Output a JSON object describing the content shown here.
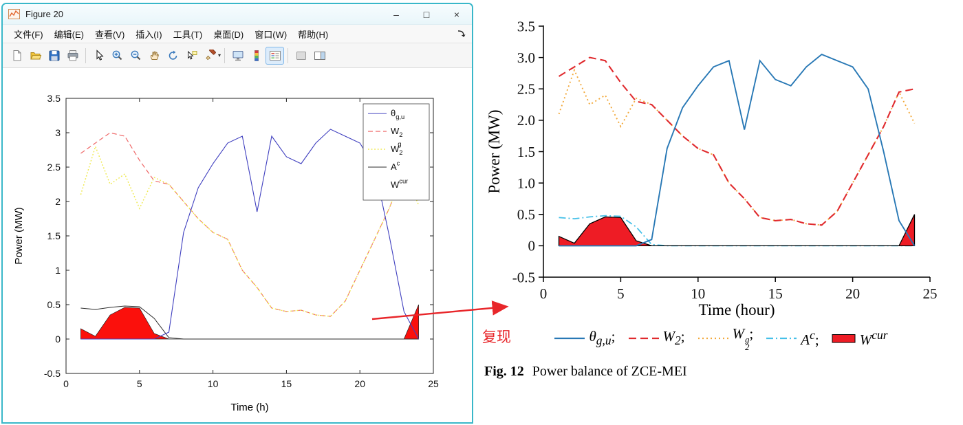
{
  "window": {
    "title": "Figure 20",
    "controls": [
      {
        "name": "minimize",
        "glyph": "–"
      },
      {
        "name": "maximize",
        "glyph": "□"
      },
      {
        "name": "close",
        "glyph": "×"
      }
    ],
    "menus": [
      "文件(F)",
      "编辑(E)",
      "查看(V)",
      "插入(I)",
      "工具(T)",
      "桌面(D)",
      "窗口(W)",
      "帮助(H)"
    ],
    "menubar_corner_icon": "dock-figure-arrow-icon",
    "toolbar_icons": [
      "new-figure",
      "open-file",
      "save-figure",
      "print-figure",
      "edit-plot-pointer",
      "zoom-in",
      "zoom-out",
      "pan-hand",
      "rotate-3d",
      "data-cursor",
      "brush-data",
      "link-plot",
      "insert-colorbar",
      "insert-legend",
      "hide-plot-tools",
      "show-plot-tools"
    ],
    "active_tool": "insert-legend"
  },
  "annotation": {
    "text": "复现",
    "color": "#e8262a"
  },
  "caption": {
    "fig_label": "Fig. 12",
    "text": "Power balance of ZCE-MEI"
  },
  "chart_data": [
    {
      "id": "matlab",
      "type": "line",
      "title": "",
      "xlabel": "Time (h)",
      "ylabel": "Power (MW)",
      "xlim": [
        0,
        25
      ],
      "ylim": [
        -0.5,
        3.5
      ],
      "xticks": [
        0,
        5,
        10,
        15,
        20,
        25
      ],
      "xtick_labels": [
        "0",
        "5",
        "10",
        "15",
        "20",
        "25"
      ],
      "yticks": [
        -0.5,
        0,
        0.5,
        1,
        1.5,
        2,
        2.5,
        3,
        3.5
      ],
      "ytick_labels": [
        "-0.5",
        "0",
        "0.5",
        "1",
        "1.5",
        "2",
        "2.5",
        "3",
        "3.5"
      ],
      "grid": false,
      "legend_position": "inside-top-right",
      "x": [
        1,
        2,
        3,
        4,
        5,
        6,
        7,
        8,
        9,
        10,
        11,
        12,
        13,
        14,
        15,
        16,
        17,
        18,
        19,
        20,
        21,
        22,
        23,
        24
      ],
      "series": [
        {
          "key": "theta-gu",
          "label_main": "θ",
          "label_sub": "g,u",
          "label_sup": "",
          "kind": "line",
          "color": "#3f3fbf",
          "dash": "",
          "width": 1.1,
          "values": [
            0,
            0,
            0,
            0,
            0,
            0,
            0.1,
            1.55,
            2.2,
            2.55,
            2.85,
            2.95,
            1.85,
            2.95,
            2.65,
            2.55,
            2.85,
            3.05,
            2.95,
            2.85,
            2.5,
            1.5,
            0.4,
            0
          ]
        },
        {
          "key": "w2",
          "label_main": "W",
          "label_sub": "2",
          "label_sup": "",
          "kind": "line",
          "color": "#ef6868",
          "dash": "7,4",
          "width": 1.2,
          "values": [
            2.7,
            2.85,
            3.0,
            2.95,
            2.6,
            2.3,
            2.25,
            2.0,
            1.75,
            1.55,
            1.45,
            1.0,
            0.75,
            0.45,
            0.4,
            0.42,
            0.35,
            0.33,
            0.55,
            1.0,
            1.45,
            1.9,
            2.45,
            2.5
          ]
        },
        {
          "key": "w2g",
          "label_main": "W",
          "label_sub": "2",
          "label_sup": "g",
          "kind": "line",
          "color": "#efe94e",
          "dash": "1.8,2.8",
          "width": 1.5,
          "values": [
            2.1,
            2.8,
            2.25,
            2.4,
            1.9,
            2.35,
            2.25,
            2.0,
            1.75,
            1.55,
            1.45,
            1.0,
            0.75,
            0.45,
            0.4,
            0.42,
            0.35,
            0.33,
            0.55,
            1.0,
            1.45,
            1.9,
            2.45,
            1.95
          ]
        },
        {
          "key": "ac",
          "label_main": "A",
          "label_sub": "",
          "label_sup": "c",
          "kind": "line",
          "color": "#2b2b2b",
          "dash": "",
          "width": 1,
          "values": [
            0.45,
            0.43,
            0.46,
            0.48,
            0.47,
            0.3,
            0.02,
            0,
            0,
            0,
            0,
            0,
            0,
            0,
            0,
            0,
            0,
            0,
            0,
            0,
            0,
            0,
            0,
            0
          ]
        },
        {
          "key": "wcur",
          "label_main": "W",
          "label_sub": "",
          "label_sup": "cur",
          "kind": "area",
          "color": "#222222",
          "fill": "#fb100c",
          "dash": "",
          "width": 0.7,
          "values": [
            0.15,
            0.04,
            0.35,
            0.46,
            0.45,
            0.08,
            0,
            0,
            0,
            0,
            0,
            0,
            0,
            0,
            0,
            0,
            0,
            0,
            0,
            0,
            0,
            0,
            0,
            0.5
          ]
        }
      ]
    },
    {
      "id": "paper",
      "type": "line",
      "title": "",
      "xlabel": "Time (hour)",
      "ylabel": "Power (MW)",
      "xlim": [
        0,
        25
      ],
      "ylim": [
        -0.5,
        3.5
      ],
      "xticks": [
        0,
        5,
        10,
        15,
        20,
        25
      ],
      "xtick_labels": [
        "0",
        "5",
        "10",
        "15",
        "20",
        "25"
      ],
      "yticks": [
        -0.5,
        0,
        0.5,
        1,
        1.5,
        2,
        2.5,
        3,
        3.5
      ],
      "ytick_labels": [
        "-0.5",
        "0",
        "0.5",
        "1.0",
        "1.5",
        "2.0",
        "2.5",
        "3.0",
        "3.5"
      ],
      "grid": false,
      "legend_position": "below",
      "x": [
        1,
        2,
        3,
        4,
        5,
        6,
        7,
        8,
        9,
        10,
        11,
        12,
        13,
        14,
        15,
        16,
        17,
        18,
        19,
        20,
        21,
        22,
        23,
        24
      ],
      "series": [
        {
          "key": "theta-gu",
          "label_main": "θ",
          "label_sub": "g,u",
          "label_sup": "",
          "suffix": ";",
          "kind": "line",
          "color": "#2878b5",
          "dash": "",
          "width": 1.9,
          "values": [
            0,
            0,
            0,
            0,
            0,
            0,
            0.1,
            1.55,
            2.2,
            2.55,
            2.85,
            2.95,
            1.85,
            2.95,
            2.65,
            2.55,
            2.85,
            3.05,
            2.95,
            2.85,
            2.5,
            1.5,
            0.4,
            0
          ]
        },
        {
          "key": "w2",
          "label_main": "W",
          "label_sub": "2",
          "label_sup": "",
          "suffix": ";",
          "kind": "line",
          "color": "#e02a2e",
          "dash": "11,6",
          "width": 2.1,
          "values": [
            2.7,
            2.85,
            3.0,
            2.95,
            2.6,
            2.3,
            2.25,
            2.0,
            1.75,
            1.55,
            1.45,
            1.0,
            0.75,
            0.45,
            0.4,
            0.42,
            0.35,
            0.33,
            0.55,
            1.0,
            1.45,
            1.9,
            2.45,
            2.5
          ]
        },
        {
          "key": "w2g",
          "label_main": "W",
          "label_sub": "2",
          "label_sup": "g",
          "suffix": ";",
          "kind": "line",
          "color": "#f2a93b",
          "dash": "2,4",
          "width": 1.9,
          "values": [
            2.1,
            2.8,
            2.25,
            2.4,
            1.9,
            2.35,
            2.25,
            2.0,
            1.75,
            1.55,
            1.45,
            1.0,
            0.75,
            0.45,
            0.4,
            0.42,
            0.35,
            0.33,
            0.55,
            1.0,
            1.45,
            1.9,
            2.45,
            1.95
          ]
        },
        {
          "key": "ac",
          "label_main": "A",
          "label_sub": "",
          "label_sup": "c",
          "suffix": ";",
          "kind": "line",
          "color": "#45c0e8",
          "dash": "10,4,2,4",
          "width": 1.8,
          "values": [
            0.45,
            0.43,
            0.46,
            0.48,
            0.47,
            0.3,
            0.02,
            0,
            0,
            0,
            0,
            0,
            0,
            0,
            0,
            0,
            0,
            0,
            0,
            0,
            0,
            0,
            0,
            0
          ]
        },
        {
          "key": "wcur",
          "label_main": "W",
          "label_sub": "",
          "label_sup": "cur",
          "suffix": "",
          "kind": "area",
          "color": "#000000",
          "fill": "#ee1c25",
          "dash": "",
          "width": 1.3,
          "values": [
            0.15,
            0.04,
            0.35,
            0.46,
            0.45,
            0.08,
            0,
            0,
            0,
            0,
            0,
            0,
            0,
            0,
            0,
            0,
            0,
            0,
            0,
            0,
            0,
            0,
            0,
            0.5
          ]
        }
      ]
    }
  ]
}
